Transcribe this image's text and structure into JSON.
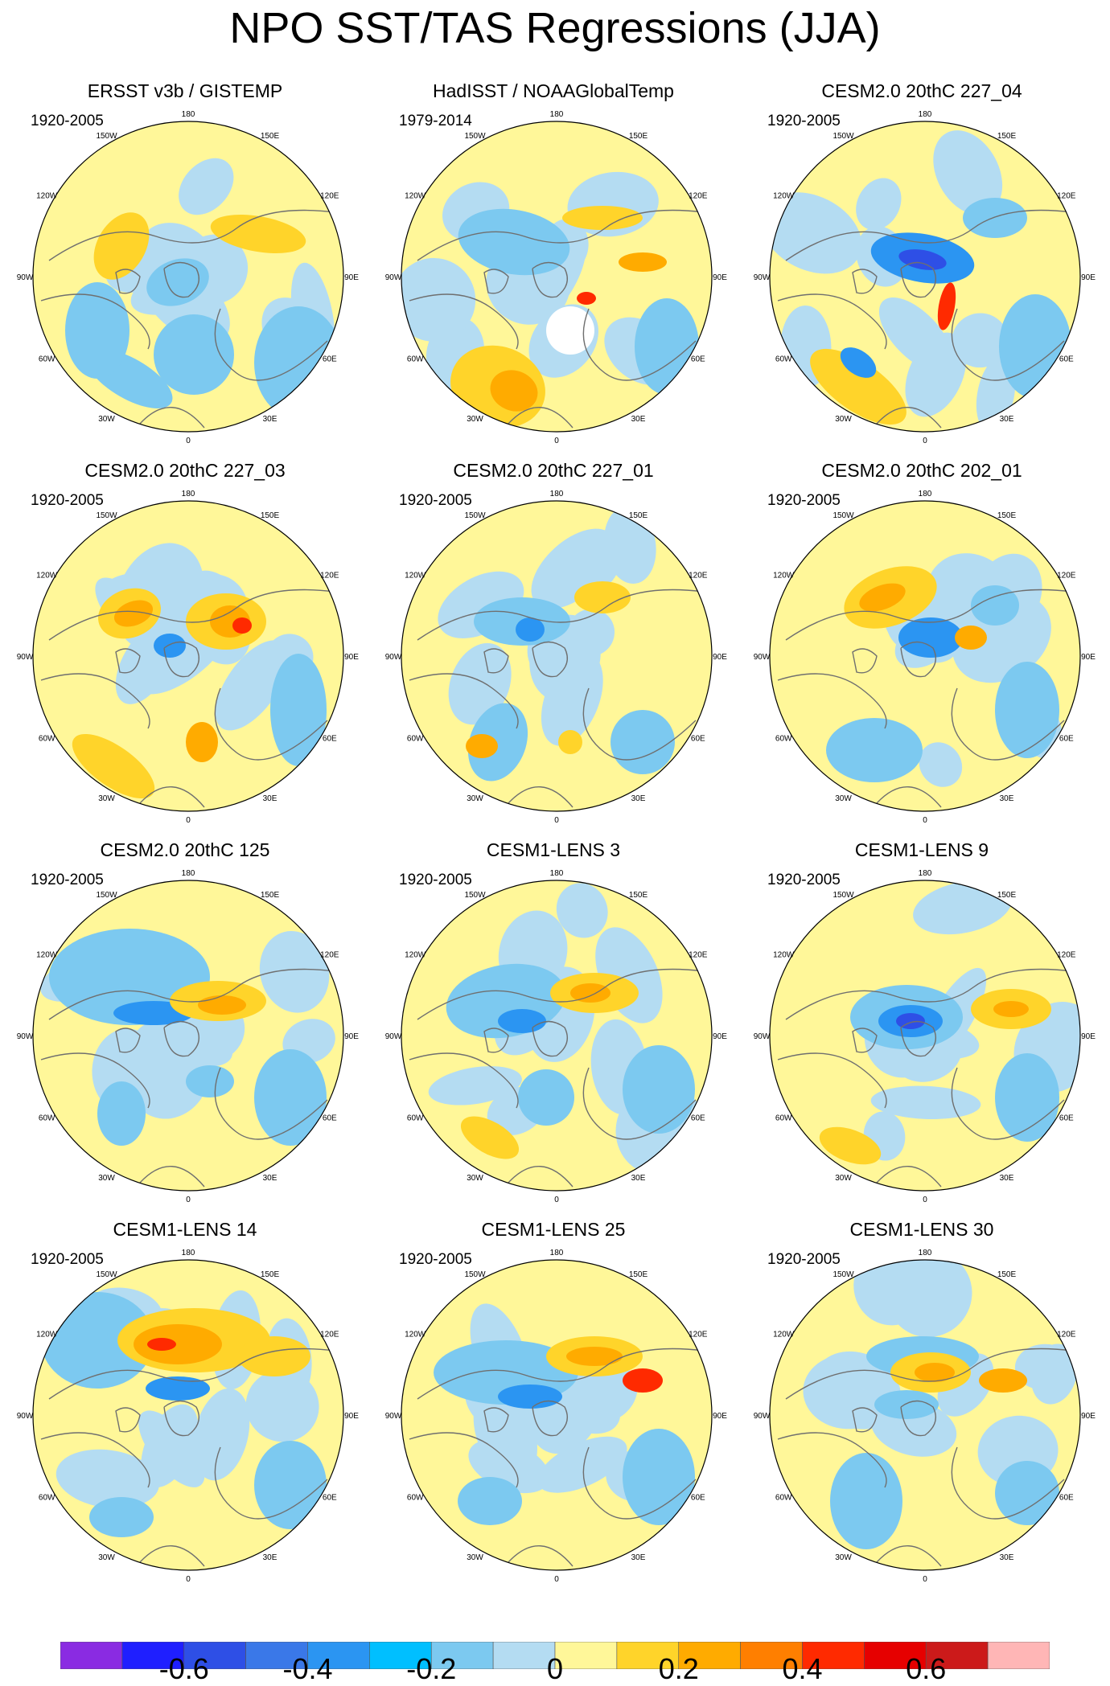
{
  "title": "NPO SST/TAS Regressions (JJA)",
  "lon_labels": [
    "180",
    "150E",
    "120E",
    "90E",
    "60E",
    "30E",
    "0",
    "30W",
    "60W",
    "90W",
    "120W",
    "150W"
  ],
  "panels": [
    {
      "title": "ERSST v3b / GISTEMP",
      "period": "1920-2005"
    },
    {
      "title": "HadISST / NOAAGlobalTemp",
      "period": "1979-2014"
    },
    {
      "title": "CESM2.0 20thC 227_04",
      "period": "1920-2005"
    },
    {
      "title": "CESM2.0 20thC 227_03",
      "period": "1920-2005"
    },
    {
      "title": "CESM2.0 20thC 227_01",
      "period": "1920-2005"
    },
    {
      "title": "CESM2.0 20thC 202_01",
      "period": "1920-2005"
    },
    {
      "title": "CESM2.0 20thC 125",
      "period": "1920-2005"
    },
    {
      "title": "CESM1-LENS 3",
      "period": "1920-2005"
    },
    {
      "title": "CESM1-LENS 9",
      "period": "1920-2005"
    },
    {
      "title": "CESM1-LENS 14",
      "period": "1920-2005"
    },
    {
      "title": "CESM1-LENS 25",
      "period": "1920-2005"
    },
    {
      "title": "CESM1-LENS 30",
      "period": "1920-2005"
    }
  ],
  "colorbar": {
    "colors": [
      "#8a2be2",
      "#1f1fff",
      "#2e4fe6",
      "#3a78e8",
      "#2b95f2",
      "#00bfff",
      "#7cc9f0",
      "#b4dcf2",
      "#fff799",
      "#ffd42a",
      "#ffab00",
      "#ff7f00",
      "#ff2a00",
      "#e60000",
      "#cc1a1a",
      "#ffb6b6"
    ],
    "labels": [
      "-0.6",
      "-0.4",
      "-0.2",
      "0",
      "0.2",
      "0.4",
      "0.6"
    ]
  },
  "palette": {
    "neutral_pos": "#fff799",
    "neutral_neg": "#b4dcf2",
    "blue_mid": "#7cc9f0",
    "blue_strong": "#2b95f2",
    "blue_deep": "#2e4fe6",
    "orange_light": "#ffd42a",
    "orange_mid": "#ffab00",
    "orange_strong": "#ff7f00",
    "red": "#ff2a00",
    "coast": "#6f6f6f",
    "missing": "#ffffff"
  }
}
